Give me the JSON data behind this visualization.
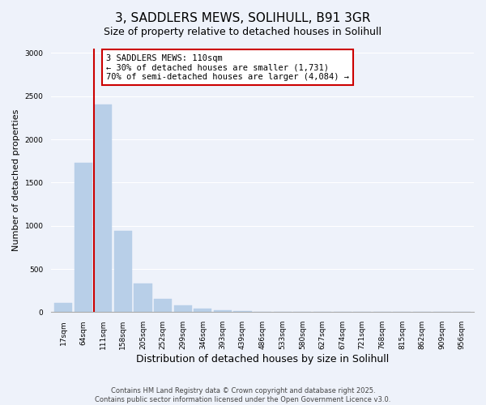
{
  "title": "3, SADDLERS MEWS, SOLIHULL, B91 3GR",
  "subtitle": "Size of property relative to detached houses in Solihull",
  "xlabel": "Distribution of detached houses by size in Solihull",
  "ylabel": "Number of detached properties",
  "bar_labels": [
    "17sqm",
    "64sqm",
    "111sqm",
    "158sqm",
    "205sqm",
    "252sqm",
    "299sqm",
    "346sqm",
    "393sqm",
    "439sqm",
    "486sqm",
    "533sqm",
    "580sqm",
    "627sqm",
    "674sqm",
    "721sqm",
    "768sqm",
    "815sqm",
    "862sqm",
    "909sqm",
    "956sqm"
  ],
  "bar_values": [
    110,
    1731,
    2400,
    940,
    335,
    150,
    75,
    40,
    25,
    8,
    0,
    0,
    0,
    0,
    0,
    0,
    0,
    0,
    0,
    0,
    0
  ],
  "bar_color": "#b8cfe8",
  "bar_edge_color": "#b8cfe8",
  "vline_color": "#cc0000",
  "annotation_title": "3 SADDLERS MEWS: 110sqm",
  "annotation_line1": "← 30% of detached houses are smaller (1,731)",
  "annotation_line2": "70% of semi-detached houses are larger (4,084) →",
  "annotation_box_facecolor": "#ffffff",
  "annotation_box_edgecolor": "#cc0000",
  "ylim": [
    0,
    3050
  ],
  "background_color": "#eef2fa",
  "grid_color": "#ffffff",
  "footer_line1": "Contains HM Land Registry data © Crown copyright and database right 2025.",
  "footer_line2": "Contains public sector information licensed under the Open Government Licence v3.0.",
  "title_fontsize": 11,
  "subtitle_fontsize": 9,
  "ylabel_fontsize": 8,
  "xlabel_fontsize": 9,
  "tick_fontsize": 6.5,
  "annot_fontsize": 7.5
}
